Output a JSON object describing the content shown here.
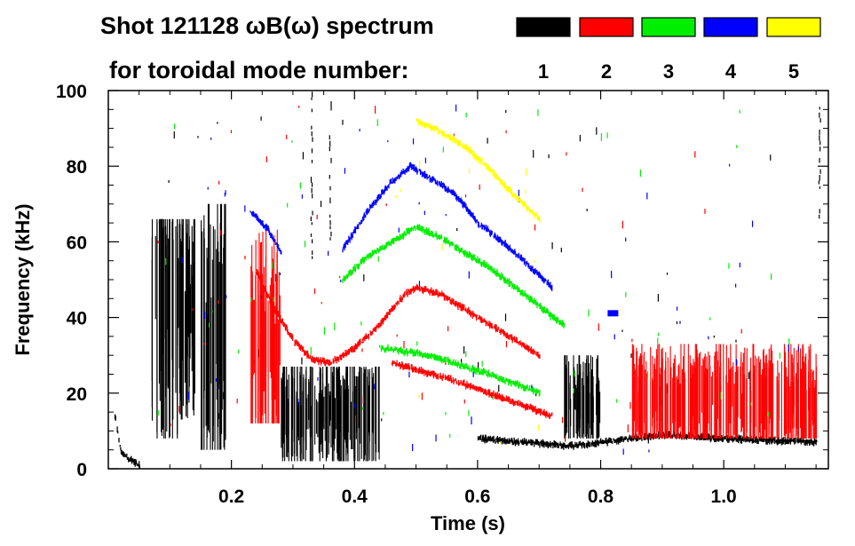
{
  "chart_data": {
    "type": "spectrogram",
    "title_line1": "Shot 121128 ωB(ω) spectrum",
    "title_line2": "for toroidal mode number:",
    "xlabel": "Time (s)",
    "ylabel": "Frequency (kHz)",
    "xlim": [
      0.0,
      1.17
    ],
    "ylim": [
      0,
      100
    ],
    "x_ticks": [
      0.2,
      0.4,
      0.6,
      0.8,
      1.0
    ],
    "x_tick_labels": [
      "0.2",
      "0.4",
      "0.6",
      "0.8",
      "1.0"
    ],
    "y_ticks": [
      0,
      20,
      40,
      60,
      80,
      100
    ],
    "y_tick_labels": [
      "0",
      "20",
      "40",
      "60",
      "80",
      "100"
    ],
    "legend": [
      {
        "label": "1",
        "color": "#000000"
      },
      {
        "label": "2",
        "color": "#ff0000"
      },
      {
        "label": "3",
        "color": "#00ee00"
      },
      {
        "label": "4",
        "color": "#0000ff"
      },
      {
        "label": "5",
        "color": "#ffff00"
      }
    ],
    "series": [
      {
        "mode": 1,
        "color": "#000000",
        "features": [
          {
            "kind": "burst",
            "t": [
              0.07,
              0.14
            ],
            "f": [
              8,
              66
            ],
            "center_f": 43
          },
          {
            "kind": "burst",
            "t": [
              0.15,
              0.19
            ],
            "f": [
              5,
              70
            ],
            "center_f": 35
          },
          {
            "kind": "line",
            "name": "low-frequency band",
            "points": [
              [
                0.01,
                14
              ],
              [
                0.02,
                4
              ],
              [
                0.05,
                1
              ]
            ]
          },
          {
            "kind": "band",
            "t": [
              0.28,
              0.44
            ],
            "f": [
              2,
              27
            ],
            "center_f": 15
          },
          {
            "kind": "vertical",
            "t": 0.33,
            "f": [
              55,
              100
            ]
          },
          {
            "kind": "vertical",
            "t": 0.36,
            "f": [
              60,
              100
            ]
          },
          {
            "kind": "burst",
            "t": [
              0.74,
              0.8
            ],
            "f": [
              8,
              30
            ],
            "center_f": 18
          },
          {
            "kind": "line",
            "name": "low-frequency tail",
            "points": [
              [
                0.6,
                8
              ],
              [
                0.75,
                6
              ],
              [
                0.9,
                9
              ],
              [
                1.0,
                8
              ],
              [
                1.15,
                7
              ]
            ]
          },
          {
            "kind": "vertical",
            "t": 1.155,
            "f": [
              66,
              100
            ]
          }
        ]
      },
      {
        "mode": 2,
        "color": "#ff0000",
        "features": [
          {
            "kind": "line",
            "name": "frequency sweep",
            "points": [
              [
                0.24,
                52
              ],
              [
                0.27,
                42
              ],
              [
                0.3,
                34
              ],
              [
                0.33,
                29
              ],
              [
                0.36,
                28
              ],
              [
                0.4,
                32
              ],
              [
                0.44,
                38
              ],
              [
                0.48,
                46
              ],
              [
                0.5,
                48
              ],
              [
                0.54,
                46
              ],
              [
                0.58,
                42
              ],
              [
                0.62,
                38
              ],
              [
                0.66,
                34
              ],
              [
                0.7,
                30
              ]
            ]
          },
          {
            "kind": "burst",
            "t": [
              0.23,
              0.28
            ],
            "f": [
              12,
              67
            ],
            "center_f": 30
          },
          {
            "kind": "band",
            "t": [
              0.85,
              1.15
            ],
            "f": [
              8,
              33
            ],
            "center_f": 18
          },
          {
            "kind": "line",
            "name": "2nd harmonic trace",
            "points": [
              [
                0.46,
                28
              ],
              [
                0.55,
                24
              ],
              [
                0.65,
                18
              ],
              [
                0.72,
                14
              ]
            ]
          }
        ]
      },
      {
        "mode": 3,
        "color": "#00ee00",
        "features": [
          {
            "kind": "line",
            "name": "frequency sweep",
            "points": [
              [
                0.38,
                50
              ],
              [
                0.42,
                56
              ],
              [
                0.46,
                60
              ],
              [
                0.5,
                64
              ],
              [
                0.54,
                61
              ],
              [
                0.58,
                57
              ],
              [
                0.62,
                53
              ],
              [
                0.66,
                48
              ],
              [
                0.7,
                43
              ],
              [
                0.74,
                38
              ]
            ]
          },
          {
            "kind": "line",
            "name": "lower trace",
            "points": [
              [
                0.44,
                32
              ],
              [
                0.52,
                30
              ],
              [
                0.6,
                26
              ],
              [
                0.7,
                20
              ]
            ]
          }
        ]
      },
      {
        "mode": 4,
        "color": "#0000ff",
        "features": [
          {
            "kind": "line",
            "name": "frequency sweep",
            "points": [
              [
                0.38,
                58
              ],
              [
                0.42,
                68
              ],
              [
                0.46,
                76
              ],
              [
                0.49,
                80
              ],
              [
                0.52,
                77
              ],
              [
                0.56,
                73
              ],
              [
                0.6,
                65
              ],
              [
                0.64,
                60
              ],
              [
                0.68,
                54
              ],
              [
                0.72,
                48
              ]
            ]
          },
          {
            "kind": "line",
            "name": "early trace",
            "points": [
              [
                0.23,
                68
              ],
              [
                0.26,
                63
              ],
              [
                0.28,
                57
              ]
            ]
          },
          {
            "kind": "blob",
            "t": 0.82,
            "f": 41
          }
        ]
      },
      {
        "mode": 5,
        "color": "#ffff00",
        "features": [
          {
            "kind": "line",
            "name": "frequency sweep",
            "points": [
              [
                0.5,
                92
              ],
              [
                0.54,
                89
              ],
              [
                0.58,
                85
              ],
              [
                0.62,
                79
              ],
              [
                0.66,
                72
              ],
              [
                0.7,
                66
              ]
            ]
          }
        ]
      }
    ]
  }
}
